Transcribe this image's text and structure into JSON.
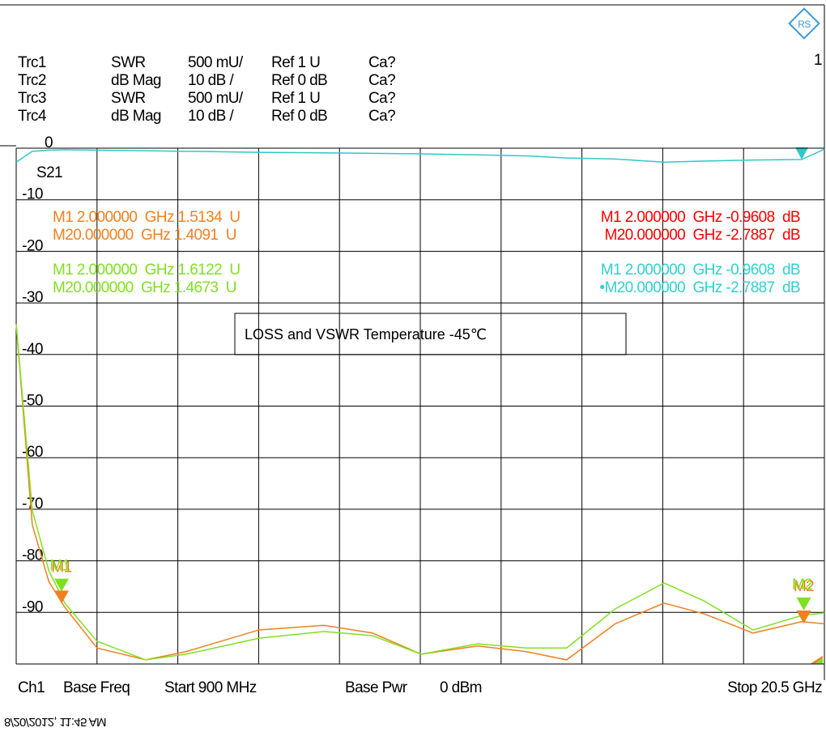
{
  "chart_data": {
    "type": "line",
    "header_rows": [
      [
        "Trc1",
        "SWR",
        "500 mU/",
        "Ref 1 U",
        "Ca?"
      ],
      [
        "Trc2",
        "dB Mag",
        "10 dB /",
        "Ref 0 dB",
        "Ca?"
      ],
      [
        "Trc3",
        "SWR",
        "500 mU/",
        "Ref 1 U",
        "Ca?"
      ],
      [
        "Trc4",
        "dB Mag",
        "10 dB /",
        "Ref 0 dB",
        "Ca?"
      ]
    ],
    "channel_number": "1",
    "trace_label": "S21",
    "annotation": "LOSS and VSWR Temperature -45℃",
    "marker_tables": [
      {
        "color": "#f08020",
        "rows": [
          "M1 2.000000  GHz 1.5134  U",
          "M20.000000  GHz 1.4091  U"
        ]
      },
      {
        "color": "#80e020",
        "rows": [
          "M1 2.000000  GHz 1.6122  U",
          "M20.000000  GHz 1.4673  U"
        ]
      },
      {
        "color": "#ff0000",
        "rows": [
          "M1 2.000000  GHz -0.9608  dB",
          "M20.000000  GHz -2.7887  dB"
        ]
      },
      {
        "color": "#30d0d0",
        "rows": [
          "M1 2.000000  GHz -0.9608  dB",
          "•M20.000000  GHz -2.7887  dB"
        ]
      }
    ],
    "markers": [
      {
        "label": "M1",
        "x": 2
      },
      {
        "label": "M2",
        "x": 20
      }
    ],
    "footer": [
      "Ch1",
      "Base Freq",
      "Start 900 MHz",
      "Base Pwr",
      "0 dBm",
      "Stop 20.5 GHz"
    ],
    "timestamp": "8/20/2012, 11:45 AM",
    "xlim": [
      0.9,
      20.5
    ],
    "ylim": [
      -100,
      0
    ],
    "yticks": [
      0,
      -10,
      -20,
      -30,
      -40,
      -50,
      -60,
      -70,
      -80,
      -90
    ],
    "x": [
      0.9,
      1.29,
      1.69,
      2.08,
      2.86,
      4.04,
      5.02,
      6.79,
      8.36,
      9.54,
      10.72,
      12.09,
      13.27,
      14.25,
      15.43,
      16.61,
      17.59,
      18.77,
      19.95,
      20.5
    ],
    "series": [
      {
        "color": "#30c8c8",
        "values": [
          -2.7,
          -0.6,
          -0.4,
          -0.3,
          -0.4,
          -0.5,
          -0.6,
          -0.8,
          -0.9,
          -1.0,
          -1.1,
          -1.3,
          -1.5,
          -1.9,
          -2.1,
          -2.7,
          -2.5,
          -2.3,
          -2.2,
          -0.2
        ]
      },
      {
        "color": "#f08020",
        "values": [
          -34.1,
          -73.0,
          -84.0,
          -89.0,
          -96.9,
          -99.2,
          -97.6,
          -93.4,
          -92.5,
          -94.0,
          -98.1,
          -96.5,
          -97.6,
          -99.2,
          -92.2,
          -88.2,
          -90.3,
          -94.0,
          -91.8,
          -92.2
        ]
      },
      {
        "color": "#80e020",
        "values": [
          -34.1,
          -70.2,
          -81.9,
          -88.2,
          -95.6,
          -99.2,
          -98.1,
          -95.0,
          -93.7,
          -94.5,
          -98.1,
          -96.1,
          -96.9,
          -96.9,
          -89.3,
          -84.3,
          -87.8,
          -93.4,
          -90.6,
          -90.1
        ]
      }
    ]
  }
}
